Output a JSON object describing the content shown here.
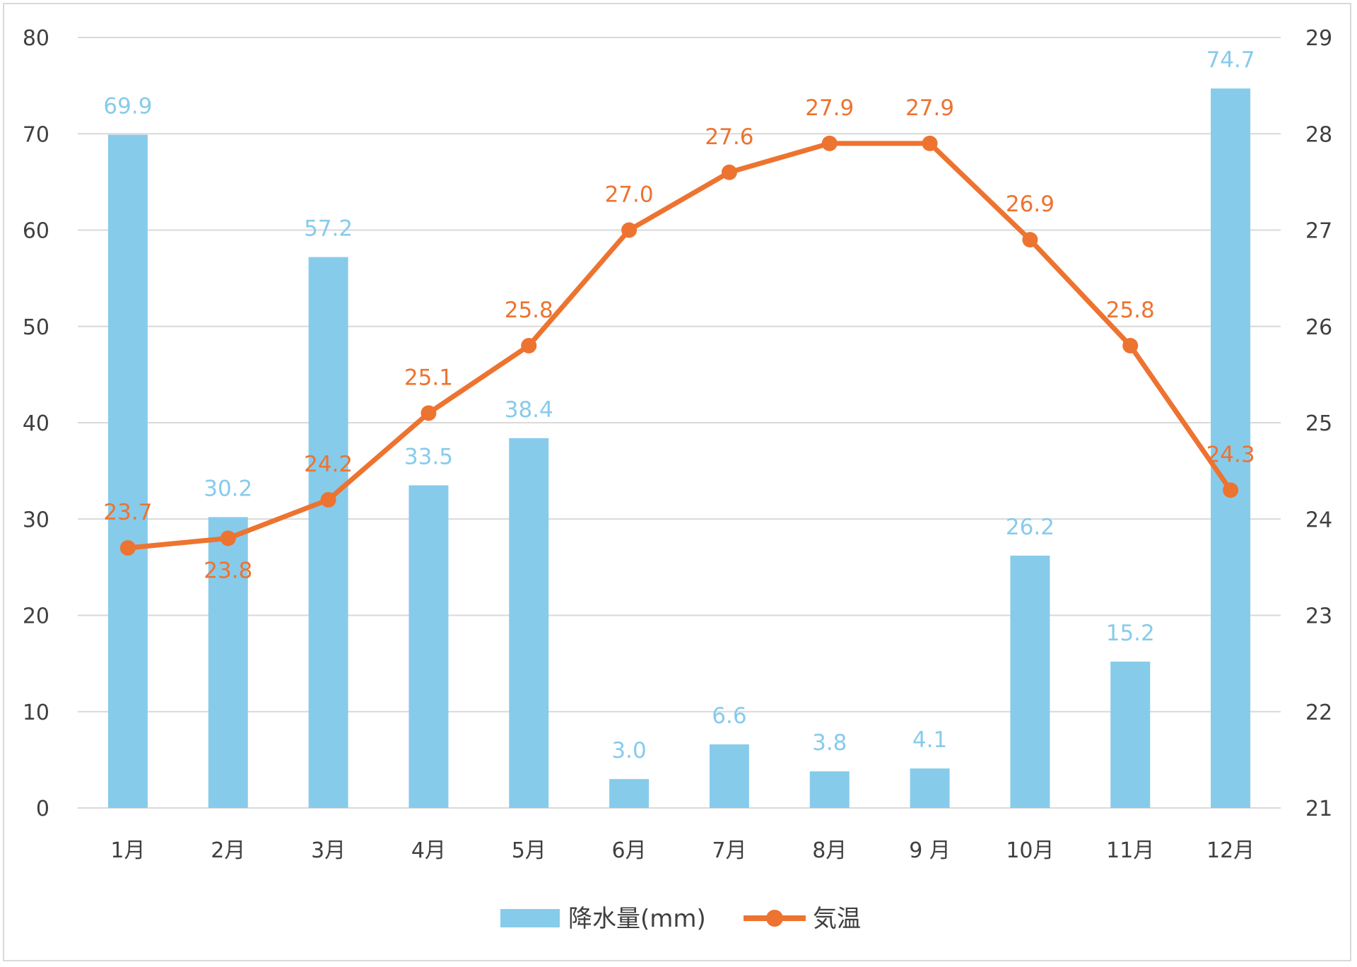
{
  "chart_data": {
    "type": "bar",
    "categories": [
      "1月",
      "2月",
      "3月",
      "4月",
      "5月",
      "6月",
      "7月",
      "8月",
      "9 月",
      "10月",
      "11月",
      "12月"
    ],
    "series": [
      {
        "name": "降水量(mm)",
        "type": "bar",
        "axis": "left",
        "color": "#87cbeb",
        "values": [
          69.9,
          30.2,
          57.2,
          33.5,
          38.4,
          3.0,
          6.6,
          3.8,
          4.1,
          26.2,
          15.2,
          74.7
        ],
        "labels": [
          "69.9",
          "30.2",
          "57.2",
          "33.5",
          "38.4",
          "3.0",
          "6.6",
          "3.8",
          "4.1",
          "26.2",
          "15.2",
          "74.7"
        ]
      },
      {
        "name": "気温",
        "type": "line",
        "axis": "right",
        "color": "#ed7330",
        "values": [
          23.7,
          23.8,
          24.2,
          25.1,
          25.8,
          27.0,
          27.6,
          27.9,
          27.9,
          26.9,
          25.8,
          24.3
        ],
        "labels": [
          "23.7",
          "23.8",
          "24.2",
          "25.1",
          "25.8",
          "27.0",
          "27.6",
          "27.9",
          "27.9",
          "26.9",
          "25.8",
          "24.3"
        ]
      }
    ],
    "left_axis": {
      "min": 0,
      "max": 80,
      "step": 10,
      "ticks": [
        "0",
        "10",
        "20",
        "30",
        "40",
        "50",
        "60",
        "70",
        "80"
      ]
    },
    "right_axis": {
      "min": 21,
      "max": 29,
      "step": 1,
      "ticks": [
        "21",
        "22",
        "23",
        "24",
        "25",
        "26",
        "27",
        "28",
        "29"
      ]
    },
    "grid": true,
    "legend_position": "bottom"
  }
}
